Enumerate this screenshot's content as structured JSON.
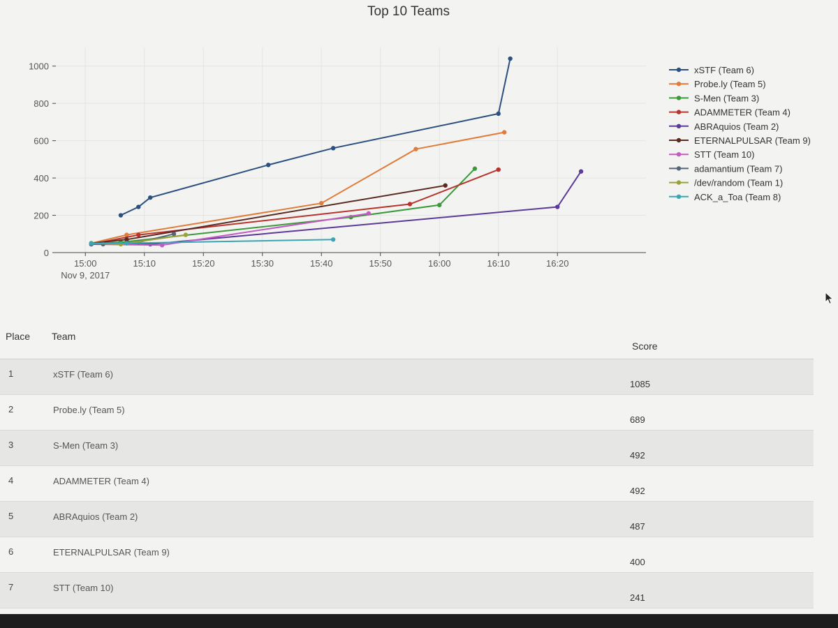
{
  "chart": {
    "title": "Top 10 Teams"
  },
  "chart_data": {
    "type": "line",
    "title": "Top 10 Teams",
    "xlabel": "",
    "ylabel": "",
    "x_axis_type": "time",
    "x_date_label": "Nov 9, 2017",
    "x_tick_labels": [
      "15:00",
      "15:10",
      "15:20",
      "15:30",
      "15:40",
      "15:50",
      "16:00",
      "16:10",
      "16:20"
    ],
    "y_tick_labels": [
      "0",
      "200",
      "400",
      "600",
      "800",
      "1000"
    ],
    "xlim": [
      "14:55",
      "16:35"
    ],
    "ylim": [
      0,
      1100
    ],
    "grid": true,
    "legend_position": "right",
    "series": [
      {
        "name": "xSTF (Team 6)",
        "color": "#2b4f7e",
        "points": [
          [
            "15:06",
            200
          ],
          [
            "15:09",
            245
          ],
          [
            "15:11",
            295
          ],
          [
            "15:31",
            470
          ],
          [
            "15:42",
            560
          ],
          [
            "16:10",
            745
          ],
          [
            "16:12",
            1040
          ]
        ]
      },
      {
        "name": "Probe.ly (Team 5)",
        "color": "#e07b39",
        "points": [
          [
            "15:01",
            50
          ],
          [
            "15:07",
            95
          ],
          [
            "15:40",
            265
          ],
          [
            "15:56",
            555
          ],
          [
            "16:11",
            645
          ]
        ]
      },
      {
        "name": "S-Men (Team 3)",
        "color": "#3a9a3a",
        "points": [
          [
            "15:01",
            50
          ],
          [
            "15:06",
            55
          ],
          [
            "15:45",
            190
          ],
          [
            "16:00",
            255
          ],
          [
            "16:06",
            450
          ]
        ]
      },
      {
        "name": "ADAMMETER (Team 4)",
        "color": "#b8332d",
        "points": [
          [
            "15:01",
            45
          ],
          [
            "15:09",
            95
          ],
          [
            "15:55",
            260
          ],
          [
            "16:10",
            445
          ]
        ]
      },
      {
        "name": "ABRAquios (Team 2)",
        "color": "#5b3a98",
        "points": [
          [
            "15:01",
            45
          ],
          [
            "15:11",
            45
          ],
          [
            "16:20",
            245
          ],
          [
            "16:24",
            435
          ]
        ]
      },
      {
        "name": "ETERNALPULSAR (Team 9)",
        "color": "#5a2a22",
        "points": [
          [
            "15:01",
            50
          ],
          [
            "15:07",
            70
          ],
          [
            "16:01",
            360
          ]
        ]
      },
      {
        "name": "STT (Team 10)",
        "color": "#c45ac3",
        "points": [
          [
            "15:01",
            45
          ],
          [
            "15:13",
            40
          ],
          [
            "15:48",
            210
          ]
        ]
      },
      {
        "name": "adamantium (Team 7)",
        "color": "#56657a",
        "points": [
          [
            "15:01",
            45
          ],
          [
            "15:03",
            45
          ],
          [
            "15:09",
            55
          ],
          [
            "15:15",
            100
          ]
        ]
      },
      {
        "name": "/dev/random (Team 1)",
        "color": "#9aa33a",
        "points": [
          [
            "15:01",
            50
          ],
          [
            "15:06",
            45
          ],
          [
            "15:17",
            95
          ]
        ]
      },
      {
        "name": "ACK_a_Toa (Team 8)",
        "color": "#3aa6b3",
        "points": [
          [
            "15:01",
            50
          ],
          [
            "15:07",
            50
          ],
          [
            "15:42",
            70
          ]
        ]
      }
    ]
  },
  "scoreboard": {
    "headers": {
      "place": "Place",
      "team": "Team",
      "score": "Score"
    },
    "rows": [
      {
        "place": "1",
        "team": "xSTF (Team 6)",
        "score": "1085"
      },
      {
        "place": "2",
        "team": "Probe.ly (Team 5)",
        "score": "689"
      },
      {
        "place": "3",
        "team": "S-Men (Team 3)",
        "score": "492"
      },
      {
        "place": "4",
        "team": "ADAMMETER (Team 4)",
        "score": "492"
      },
      {
        "place": "5",
        "team": "ABRAquios (Team 2)",
        "score": "487"
      },
      {
        "place": "6",
        "team": "ETERNALPULSAR (Team 9)",
        "score": "400"
      },
      {
        "place": "7",
        "team": "STT (Team 10)",
        "score": "241"
      }
    ]
  },
  "icons": {
    "cursor": "mouse-pointer-icon"
  }
}
